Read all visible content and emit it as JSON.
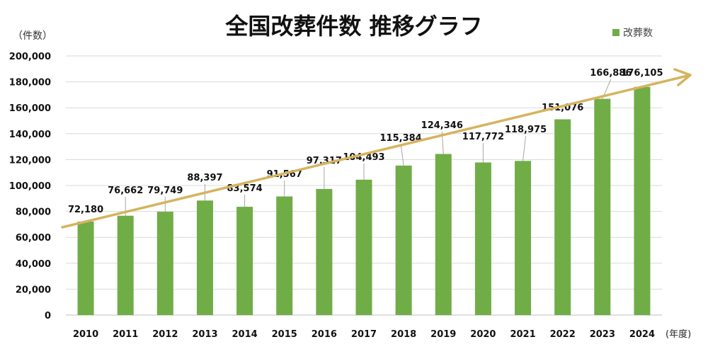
{
  "chart_data": {
    "type": "bar",
    "title": "全国改葬件数 推移グラフ",
    "ylabel": "（件数）",
    "xlabel": "(年度)",
    "legend": {
      "entries": [
        "改葬数"
      ],
      "placement": "top-right"
    },
    "categories": [
      "2010",
      "2011",
      "2012",
      "2013",
      "2014",
      "2015",
      "2016",
      "2017",
      "2018",
      "2019",
      "2020",
      "2021",
      "2022",
      "2023",
      "2024"
    ],
    "series": [
      {
        "name": "改葬数",
        "values": [
          72180,
          76662,
          79749,
          88397,
          83574,
          91567,
          97317,
          104493,
          115384,
          124346,
          117772,
          118975,
          151076,
          166886,
          176105
        ]
      }
    ],
    "data_labels": [
      "72,180",
      "76,662",
      "79,749",
      "88,397",
      "83,574",
      "91,567",
      "97,317",
      "104,493",
      "115,384",
      "124,346",
      "117,772",
      "118,975",
      "151,076",
      "166,886",
      "176,105"
    ],
    "ylim": [
      0,
      200000
    ],
    "yticks": [
      "0",
      "20,000",
      "40,000",
      "60,000",
      "80,000",
      "100,000",
      "120,000",
      "140,000",
      "160,000",
      "180,000",
      "200,000"
    ],
    "grid": true,
    "annotation": "upward trend arrow",
    "colors": {
      "bar": "#70AD47",
      "arrow": "#D6B35E",
      "grid": "#D9D9D9"
    }
  }
}
